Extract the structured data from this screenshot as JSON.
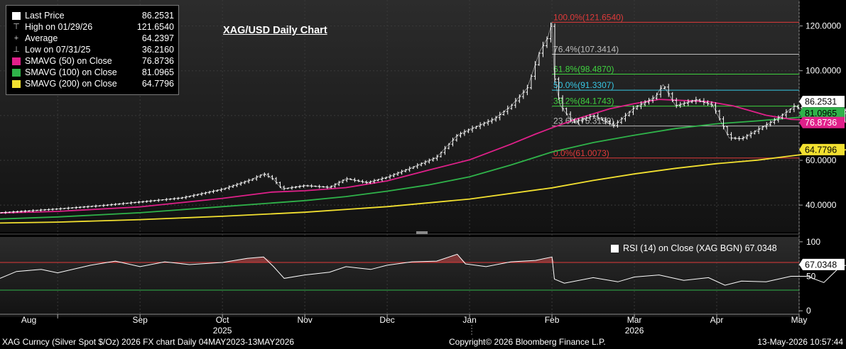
{
  "legend": {
    "items": [
      {
        "label": "Last Price",
        "value": "86.2531",
        "symbol": "box",
        "color": "#ffffff"
      },
      {
        "label": "High on 01/29/26",
        "value": "121.6540",
        "symbol": "⊤",
        "color": "#cccccc"
      },
      {
        "label": "Average",
        "value": "64.2397",
        "symbol": "+",
        "color": "#cccccc"
      },
      {
        "label": "Low on 07/31/25",
        "value": "36.2160",
        "symbol": "⊥",
        "color": "#cccccc"
      },
      {
        "label": "SMAVG (50)  on Close",
        "value": "76.8736",
        "symbol": "box",
        "color": "#e0208a"
      },
      {
        "label": "SMAVG (100)  on Close",
        "value": "81.0965",
        "symbol": "box",
        "color": "#2fb34a"
      },
      {
        "label": "SMAVG (200)  on Close",
        "value": "64.7796",
        "symbol": "box",
        "color": "#f2e030"
      }
    ]
  },
  "title": "XAG/USD Daily Chart",
  "rsi_legend": "RSI (14)  on Close (XAG BGN) 67.0348",
  "footer": {
    "left": "XAG Curncy (Silver Spot  $/Oz) 2026 FX chart Daily 04MAY2023-13MAY2026",
    "center": "Copyright© 2026 Bloomberg Finance L.P.",
    "right": "13-May-2026 10:57:44"
  },
  "chart_data": [
    {
      "type": "line",
      "title": "XAG/USD Daily Chart",
      "x_tick_labels": [
        "Aug",
        "Sep",
        "Oct",
        "Nov",
        "Dec",
        "Jan",
        "Feb",
        "Mar",
        "Apr",
        "May"
      ],
      "year_labels": [
        "2025",
        "2026"
      ],
      "y_tick_labels": [
        "40.0000",
        "60.0000",
        "80.0000",
        "100.0000",
        "120.0000"
      ],
      "ylim": [
        28,
        130
      ],
      "x_months": [
        -0.7,
        9.0
      ],
      "series": [
        {
          "name": "Last Price",
          "color": "#ffffff",
          "points": [
            [
              -0.7,
              36.6
            ],
            [
              0,
              38.3
            ],
            [
              0.5,
              39.7
            ],
            [
              1,
              41.4
            ],
            [
              1.5,
              43.2
            ],
            [
              2,
              47.1
            ],
            [
              2.35,
              51.4
            ],
            [
              2.5,
              54.0
            ],
            [
              2.62,
              51.5
            ],
            [
              2.72,
              47.2
            ],
            [
              3,
              48.7
            ],
            [
              3.3,
              47.9
            ],
            [
              3.5,
              51.8
            ],
            [
              3.75,
              50.0
            ],
            [
              4,
              52.5
            ],
            [
              4.3,
              56.8
            ],
            [
              4.6,
              61.4
            ],
            [
              4.85,
              71.2
            ],
            [
              5,
              73.8
            ],
            [
              5.3,
              78.5
            ],
            [
              5.5,
              84.2
            ],
            [
              5.7,
              92.3
            ],
            [
              5.85,
              108.5
            ],
            [
              5.95,
              115.0
            ],
            [
              6.0,
              121.6
            ],
            [
              6.03,
              97.0
            ],
            [
              6.1,
              84.6
            ],
            [
              6.25,
              76.8
            ],
            [
              6.5,
              80.0
            ],
            [
              6.75,
              75.5
            ],
            [
              7.0,
              83.5
            ],
            [
              7.25,
              88.2
            ],
            [
              7.35,
              93.8
            ],
            [
              7.5,
              84.4
            ],
            [
              7.75,
              87.0
            ],
            [
              7.95,
              84.6
            ],
            [
              8.15,
              70.0
            ],
            [
              8.3,
              69.6
            ],
            [
              8.5,
              73.7
            ],
            [
              8.75,
              79.0
            ],
            [
              8.95,
              84.4
            ],
            [
              9.1,
              80.7
            ],
            [
              9.3,
              75.3
            ],
            [
              9.5,
              76.8
            ],
            [
              9.6,
              86.3
            ]
          ]
        },
        {
          "name": "SMAVG (50)  on Close",
          "color": "#e0208a",
          "points": [
            [
              -0.7,
              36.5
            ],
            [
              0,
              37.2
            ],
            [
              1,
              39.2
            ],
            [
              2,
              43.0
            ],
            [
              2.6,
              45.8
            ],
            [
              3,
              46.4
            ],
            [
              3.5,
              47.8
            ],
            [
              4,
              50.8
            ],
            [
              4.5,
              55.6
            ],
            [
              5,
              60.2
            ],
            [
              5.5,
              67.2
            ],
            [
              5.8,
              71.7
            ],
            [
              6.0,
              74.5
            ],
            [
              6.3,
              78.5
            ],
            [
              6.7,
              83.0
            ],
            [
              7.0,
              85.3
            ],
            [
              7.3,
              87.2
            ],
            [
              7.6,
              86.7
            ],
            [
              7.9,
              86.2
            ],
            [
              8.2,
              84.3
            ],
            [
              8.6,
              80.1
            ],
            [
              8.9,
              78.3
            ],
            [
              9.2,
              77.8
            ],
            [
              9.6,
              76.9
            ]
          ]
        },
        {
          "name": "SMAVG (100)  on Close",
          "color": "#2fb34a",
          "points": [
            [
              -0.7,
              33.8
            ],
            [
              0,
              34.7
            ],
            [
              1,
              36.6
            ],
            [
              2,
              39.3
            ],
            [
              3,
              42.0
            ],
            [
              3.5,
              43.8
            ],
            [
              4,
              46.2
            ],
            [
              4.5,
              49.0
            ],
            [
              5,
              52.6
            ],
            [
              5.5,
              57.9
            ],
            [
              6.0,
              63.7
            ],
            [
              6.5,
              67.9
            ],
            [
              7.0,
              71.2
            ],
            [
              7.5,
              74.2
            ],
            [
              8.0,
              76.3
            ],
            [
              8.5,
              77.6
            ],
            [
              9.0,
              79.2
            ],
            [
              9.6,
              81.1
            ]
          ]
        },
        {
          "name": "SMAVG (200)  on Close",
          "color": "#f2e030",
          "points": [
            [
              -0.7,
              32.0
            ],
            [
              0,
              32.4
            ],
            [
              1,
              33.5
            ],
            [
              2,
              35.0
            ],
            [
              3,
              36.8
            ],
            [
              4,
              39.3
            ],
            [
              5,
              42.7
            ],
            [
              6.0,
              47.7
            ],
            [
              6.5,
              51.0
            ],
            [
              7.0,
              53.9
            ],
            [
              7.5,
              56.4
            ],
            [
              8.0,
              58.5
            ],
            [
              8.5,
              60.1
            ],
            [
              9.0,
              62.4
            ],
            [
              9.6,
              64.8
            ]
          ]
        }
      ],
      "fibonacci_levels": [
        {
          "label": "100.0%(121.6540)",
          "value": 121.654,
          "color": "#e03a3a"
        },
        {
          "label": "76.4%(107.3414)",
          "value": 107.3414,
          "color": "#bdbdbd"
        },
        {
          "label": "61.8%(98.4870)",
          "value": 98.487,
          "color": "#3fd23f"
        },
        {
          "label": "50.0%(91.3307)",
          "value": 91.3307,
          "color": "#37c8e6"
        },
        {
          "label": "38.2%(84.1743)",
          "value": 84.1743,
          "color": "#3fd23f"
        },
        {
          "label": "23.6%(75.3199)",
          "value": 75.3199,
          "color": "#bdbdbd"
        },
        {
          "label": "0.0%(61.0073)",
          "value": 61.0073,
          "color": "#e03a3a"
        }
      ],
      "value_tags": [
        {
          "text": "86.2531",
          "value": 86.2531,
          "bg": "#ffffff",
          "fg": "#000000"
        },
        {
          "text": "81.0965",
          "value": 81.0965,
          "bg": "#2fb34a",
          "fg": "#000000"
        },
        {
          "text": "76.8736",
          "value": 76.8736,
          "bg": "#e0208a",
          "fg": "#ffffff"
        },
        {
          "text": "64.7796",
          "value": 64.7796,
          "bg": "#f2e030",
          "fg": "#000000"
        }
      ]
    },
    {
      "type": "line",
      "title": "RSI (14)  on Close (XAG BGN) 67.0348",
      "y_tick_labels": [
        "0",
        "50",
        "100"
      ],
      "ylim": [
        -5,
        105
      ],
      "overbought": 70,
      "oversold": 30,
      "last_value": "67.0348",
      "series": [
        {
          "name": "RSI (14)  on Close (XAG BGN)",
          "color": "#ffffff",
          "points": [
            [
              -0.7,
              47
            ],
            [
              -0.5,
              57
            ],
            [
              -0.2,
              60
            ],
            [
              0,
              55
            ],
            [
              0.4,
              66
            ],
            [
              0.7,
              72
            ],
            [
              1,
              64
            ],
            [
              1.3,
              71
            ],
            [
              1.6,
              67
            ],
            [
              2.0,
              70
            ],
            [
              2.3,
              76
            ],
            [
              2.5,
              78
            ],
            [
              2.62,
              64
            ],
            [
              2.75,
              47
            ],
            [
              3.0,
              52
            ],
            [
              3.3,
              56
            ],
            [
              3.5,
              64
            ],
            [
              3.8,
              60
            ],
            [
              4.0,
              66
            ],
            [
              4.3,
              71
            ],
            [
              4.6,
              72
            ],
            [
              4.85,
              82
            ],
            [
              4.95,
              68
            ],
            [
              5.2,
              64
            ],
            [
              5.5,
              71
            ],
            [
              5.8,
              73
            ],
            [
              6.0,
              78
            ],
            [
              6.03,
              46
            ],
            [
              6.15,
              40
            ],
            [
              6.5,
              48
            ],
            [
              6.8,
              42
            ],
            [
              7.0,
              49
            ],
            [
              7.3,
              52
            ],
            [
              7.6,
              44
            ],
            [
              7.9,
              48
            ],
            [
              8.1,
              37
            ],
            [
              8.3,
              43
            ],
            [
              8.6,
              42
            ],
            [
              8.9,
              50
            ],
            [
              9.1,
              50
            ],
            [
              9.3,
              41
            ],
            [
              9.5,
              64
            ],
            [
              9.6,
              67
            ]
          ]
        }
      ]
    }
  ]
}
